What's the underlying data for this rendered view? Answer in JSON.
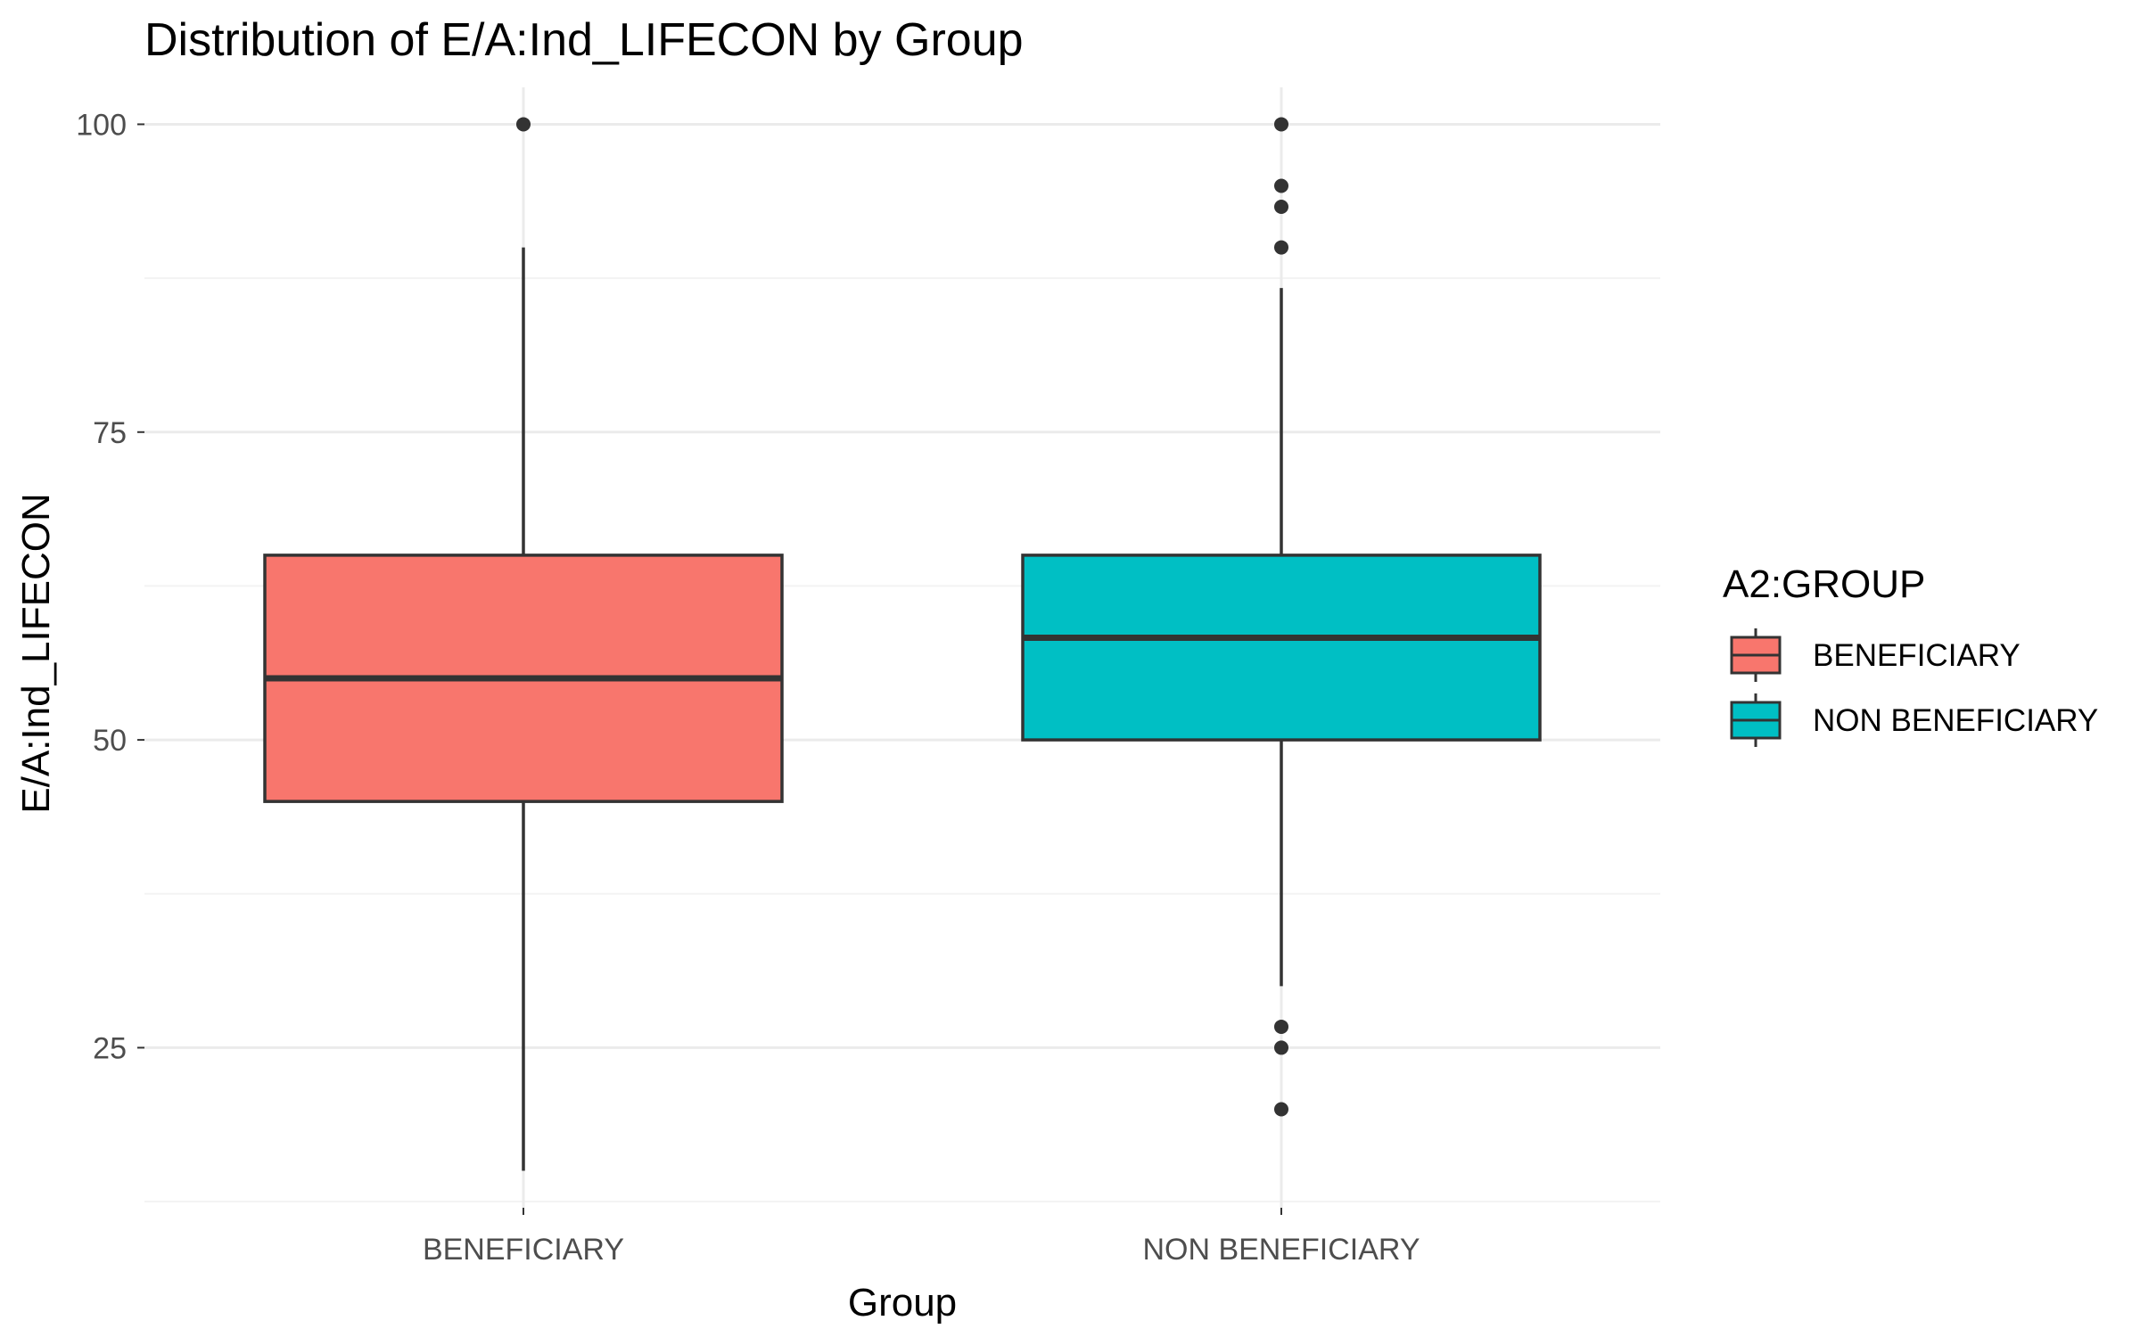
{
  "chart_data": {
    "type": "boxplot",
    "title": "Distribution of E/A:Ind_LIFECON by Group",
    "xlabel": "Group",
    "ylabel": "E/A:Ind_LIFECON",
    "ylim": [
      12,
      103
    ],
    "yticks": [
      25,
      50,
      75,
      100
    ],
    "ytick_labels": [
      "25",
      "50",
      "75",
      "100"
    ],
    "categories": [
      "BENEFICIARY",
      "NON BENEFICIARY"
    ],
    "series": [
      {
        "name": "BENEFICIARY",
        "color": "#F8766D",
        "whisker_low": 15,
        "q1": 45,
        "median": 55,
        "q3": 65,
        "whisker_high": 90,
        "outliers": [
          100
        ]
      },
      {
        "name": "NON BENEFICIARY",
        "color": "#00BFC4",
        "whisker_low": 30,
        "q1": 50,
        "median": 58.3,
        "q3": 65,
        "whisker_high": 86.7,
        "outliers": [
          100,
          95,
          93.3,
          90,
          26.7,
          25,
          20
        ]
      }
    ],
    "legend": {
      "title": "A2:GROUP",
      "placement": "right",
      "items": [
        "BENEFICIARY",
        "NON BENEFICIARY"
      ]
    },
    "grid": true,
    "colors": {
      "grid_major": "#ebebeb",
      "grid_minor": "#f3f3f3",
      "box_outline": "#333333",
      "outlier": "#333333"
    }
  }
}
